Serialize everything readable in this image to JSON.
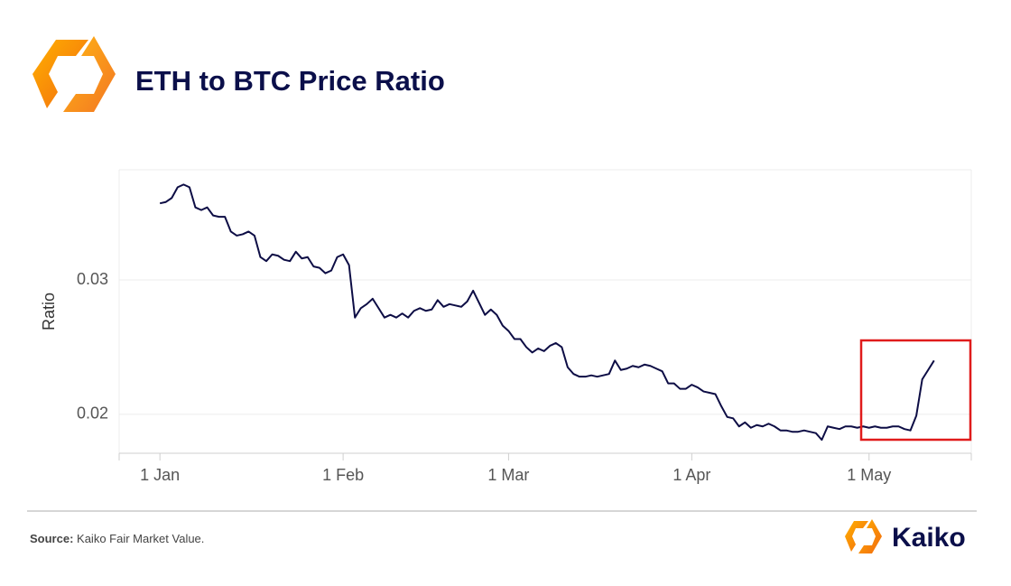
{
  "chart_data": {
    "type": "line",
    "title": "ETH to BTC Price Ratio",
    "y_label": "Ratio",
    "x": [
      0,
      1,
      2,
      3,
      4,
      5,
      6,
      7,
      8,
      9,
      10,
      11,
      12,
      13,
      14,
      15,
      16,
      17,
      18,
      19,
      20,
      21,
      22,
      23,
      24,
      25,
      26,
      27,
      28,
      29,
      30,
      31,
      32,
      33,
      34,
      35,
      36,
      37,
      38,
      39,
      40,
      41,
      42,
      43,
      44,
      45,
      46,
      47,
      48,
      49,
      50,
      51,
      52,
      53,
      54,
      55,
      56,
      57,
      58,
      59,
      60,
      61,
      62,
      63,
      64,
      65,
      66,
      67,
      68,
      69,
      70,
      71,
      72,
      73,
      74,
      75,
      76,
      77,
      78,
      79,
      80,
      81,
      82,
      83,
      84,
      85,
      86,
      87,
      88,
      89,
      90,
      91,
      92,
      93,
      94,
      95,
      96,
      97,
      98,
      99,
      100,
      101,
      102,
      103,
      104,
      105,
      106,
      107,
      108,
      109,
      110,
      111,
      112,
      113,
      114,
      115,
      116,
      117,
      118,
      119,
      120,
      121,
      122,
      123,
      124,
      125,
      126,
      127,
      128,
      129,
      130,
      131
    ],
    "series": [
      {
        "name": "ETH/BTC",
        "color": "#0d0d45",
        "values": [
          0.0357,
          0.0358,
          0.0361,
          0.0369,
          0.0371,
          0.0369,
          0.0354,
          0.0352,
          0.0354,
          0.0348,
          0.0347,
          0.0347,
          0.0336,
          0.0333,
          0.0334,
          0.0336,
          0.0333,
          0.0317,
          0.0314,
          0.0319,
          0.0318,
          0.0315,
          0.0314,
          0.0321,
          0.0316,
          0.0317,
          0.031,
          0.0309,
          0.0305,
          0.0307,
          0.0317,
          0.0319,
          0.0311,
          0.0272,
          0.0279,
          0.0282,
          0.0286,
          0.0279,
          0.0272,
          0.0274,
          0.0272,
          0.0275,
          0.0272,
          0.0277,
          0.0279,
          0.0277,
          0.0278,
          0.0285,
          0.028,
          0.0282,
          0.0281,
          0.028,
          0.0284,
          0.0292,
          0.0283,
          0.0274,
          0.0278,
          0.0274,
          0.0266,
          0.0262,
          0.0256,
          0.0256,
          0.025,
          0.0246,
          0.0249,
          0.0247,
          0.0251,
          0.0253,
          0.025,
          0.0235,
          0.023,
          0.0228,
          0.0228,
          0.0229,
          0.0228,
          0.0229,
          0.023,
          0.024,
          0.0233,
          0.0234,
          0.0236,
          0.0235,
          0.0237,
          0.0236,
          0.0234,
          0.0232,
          0.0223,
          0.0223,
          0.0219,
          0.0219,
          0.0222,
          0.022,
          0.0217,
          0.0216,
          0.0215,
          0.0206,
          0.0198,
          0.0197,
          0.0191,
          0.0194,
          0.019,
          0.0192,
          0.0191,
          0.0193,
          0.0191,
          0.0188,
          0.0188,
          0.0187,
          0.0187,
          0.0188,
          0.0187,
          0.0186,
          0.0181,
          0.0191,
          0.019,
          0.0189,
          0.0191,
          0.0191,
          0.019,
          0.0191,
          0.019,
          0.0191,
          0.019,
          0.019,
          0.0191,
          0.0191,
          0.0189,
          0.0188,
          0.0199,
          0.0226,
          0.0233,
          0.024
        ]
      }
    ],
    "xlim": [
      -6.9,
      137.3
    ],
    "xticks": [
      {
        "value": 0,
        "label": "1 Jan"
      },
      {
        "value": 31,
        "label": "1 Feb"
      },
      {
        "value": 59,
        "label": "1 Mar"
      },
      {
        "value": 90,
        "label": "1 Apr"
      },
      {
        "value": 120,
        "label": "1 May"
      }
    ],
    "ylim": [
      0.0171,
      0.0382
    ],
    "yticks": [
      0.02,
      0.03
    ],
    "grid": true
  },
  "source": {
    "label": "Source:",
    "text": "Kaiko Fair Market Value."
  },
  "brand": "Kaiko"
}
